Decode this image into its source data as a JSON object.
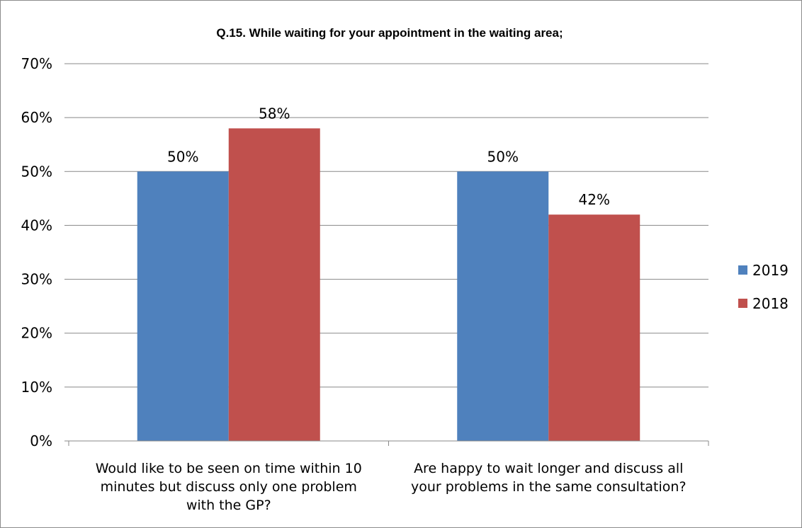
{
  "chart_data": {
    "type": "bar",
    "title": "Q.15. While waiting for your appointment in the waiting area;",
    "categories": [
      [
        "Would like to be seen on time within 10",
        "minutes but discuss only one problem",
        "with the GP?"
      ],
      [
        "Are happy to wait longer and discuss all",
        "your problems in the same consultation?"
      ]
    ],
    "series": [
      {
        "name": "2019",
        "color": "#4f81bd",
        "values": [
          50,
          50
        ],
        "labels": [
          "50%",
          "50%"
        ]
      },
      {
        "name": "2018",
        "color": "#c0504d",
        "values": [
          58,
          42
        ],
        "labels": [
          "58%",
          "42%"
        ]
      }
    ],
    "ylim": [
      0,
      70
    ],
    "yticks": [
      0,
      10,
      20,
      30,
      40,
      50,
      60,
      70
    ],
    "ytick_labels": [
      "0%",
      "10%",
      "20%",
      "30%",
      "40%",
      "50%",
      "60%",
      "70%"
    ],
    "xlabel": "",
    "ylabel": "",
    "grid": true,
    "legend_position": "right"
  }
}
